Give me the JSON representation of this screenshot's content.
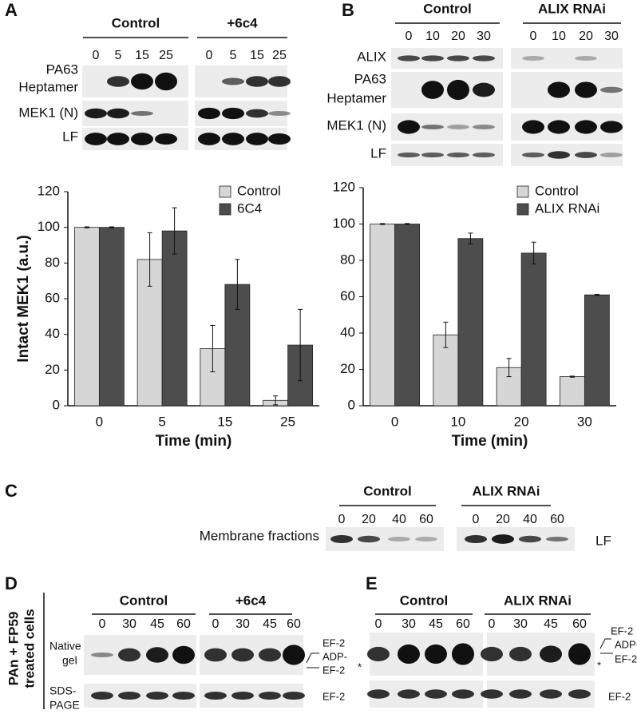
{
  "panels": {
    "A": {
      "letter": "A",
      "groups": [
        {
          "name": "Control",
          "times": [
            "0",
            "5",
            "15",
            "25"
          ]
        },
        {
          "name": "+6c4",
          "times": [
            "0",
            "5",
            "15",
            "25"
          ]
        }
      ],
      "rows": [
        [
          "PA63",
          "Heptamer"
        ],
        [
          "MEK1 (N)"
        ],
        [
          "LF"
        ]
      ]
    },
    "B": {
      "letter": "B",
      "groups": [
        {
          "name": "Control",
          "times": [
            "0",
            "10",
            "20",
            "30"
          ]
        },
        {
          "name": "ALIX RNAi",
          "times": [
            "0",
            "10",
            "20",
            "30"
          ]
        }
      ],
      "rows": [
        [
          "ALIX"
        ],
        [
          "PA63",
          "Heptamer"
        ],
        [
          "MEK1 (N)"
        ],
        [
          "LF"
        ]
      ]
    },
    "C": {
      "letter": "C",
      "groups": [
        {
          "name": "Control",
          "times": [
            "0",
            "20",
            "40",
            "60"
          ]
        },
        {
          "name": "ALIX RNAi",
          "times": [
            "0",
            "20",
            "40",
            "60"
          ]
        }
      ],
      "row_label": "Membrane fractions",
      "band_label": "LF"
    },
    "D": {
      "letter": "D",
      "side_label": [
        "PAn + FP59",
        "treated cells"
      ],
      "groups": [
        {
          "name": "Control",
          "times": [
            "0",
            "30",
            "45",
            "60"
          ]
        },
        {
          "name": "+6c4",
          "times": [
            "0",
            "30",
            "45",
            "60"
          ]
        }
      ],
      "row_labels": [
        [
          "Native",
          "gel"
        ],
        [
          "SDS-",
          "PAGE"
        ]
      ],
      "band_labels": [
        "EF-2",
        "ADP-",
        "EF-2",
        "EF-2"
      ]
    },
    "E": {
      "letter": "E",
      "groups": [
        {
          "name": "Control",
          "times": [
            "0",
            "30",
            "45",
            "60"
          ]
        },
        {
          "name": "ALIX RNAi",
          "times": [
            "0",
            "30",
            "45",
            "60"
          ]
        }
      ],
      "band_labels": [
        "EF-2",
        "ADP-",
        "EF-2",
        "EF-2"
      ],
      "markers": [
        "*",
        "*"
      ]
    }
  },
  "chart_data": [
    {
      "type": "bar",
      "y_label": "Intact MEK1 (a.u.)",
      "x_label": "Time (min)",
      "categories": [
        "0",
        "5",
        "15",
        "25"
      ],
      "series": [
        {
          "name": "Control",
          "color": "#d6d6d6",
          "values": [
            100,
            82,
            32,
            3
          ],
          "errors": [
            0.3,
            15,
            13,
            2.5
          ]
        },
        {
          "name": "6C4",
          "color": "#4d4d4d",
          "values": [
            100,
            98,
            68,
            34
          ],
          "errors": [
            0.3,
            13,
            14,
            20
          ]
        }
      ],
      "ylim": [
        0,
        120
      ],
      "yticks": [
        0,
        20,
        40,
        60,
        80,
        100,
        120
      ],
      "legend": "upper right"
    },
    {
      "type": "bar",
      "x_label": "Time (min)",
      "categories": [
        "0",
        "10",
        "20",
        "30"
      ],
      "series": [
        {
          "name": "Control",
          "color": "#d6d6d6",
          "values": [
            100,
            39,
            21,
            16
          ],
          "errors": [
            0.3,
            7,
            5,
            0.3
          ]
        },
        {
          "name": "ALIX RNAi",
          "color": "#4d4d4d",
          "values": [
            100,
            92,
            84,
            61
          ],
          "errors": [
            0.3,
            3,
            6,
            0.3
          ]
        }
      ],
      "ylim": [
        0,
        120
      ],
      "yticks": [
        0,
        20,
        40,
        60,
        80,
        100,
        120
      ],
      "legend": "upper right"
    }
  ]
}
